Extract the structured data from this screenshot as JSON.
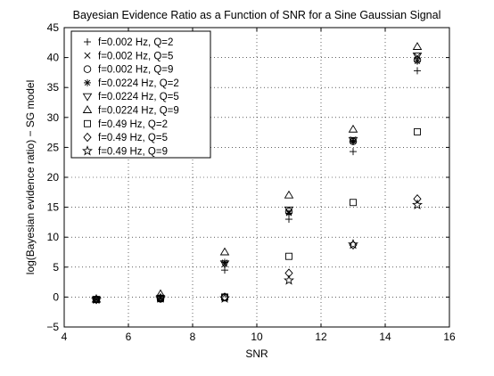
{
  "chart_data": {
    "type": "scatter",
    "title": "Bayesian Evidence Ratio as a Function of SNR for a Sine Gaussian Signal",
    "xlabel": "SNR",
    "ylabel": "log(Bayesian evidence ratio) − SG model",
    "xlim": [
      4,
      16
    ],
    "ylim": [
      -5,
      45
    ],
    "xticks": [
      "4",
      "6",
      "8",
      "10",
      "12",
      "14",
      "16"
    ],
    "yticks": [
      "−5",
      "0",
      "5",
      "10",
      "15",
      "20",
      "25",
      "30",
      "35",
      "40",
      "45"
    ],
    "grid": true,
    "legend_position": "top-left",
    "series": [
      {
        "name": "f=0.002 Hz, Q=2",
        "marker": "plus",
        "x": [
          5,
          7,
          9,
          11,
          13,
          15
        ],
        "y": [
          -0.4,
          -0.2,
          4.5,
          13.0,
          24.3,
          37.8
        ]
      },
      {
        "name": "f=0.002 Hz, Q=5",
        "marker": "x",
        "x": [
          5,
          7,
          9,
          11,
          13,
          15
        ],
        "y": [
          -0.4,
          -0.2,
          5.5,
          14.2,
          26.3,
          40.2
        ]
      },
      {
        "name": "f=0.002 Hz, Q=9",
        "marker": "circle",
        "x": [
          5,
          7,
          9,
          11,
          13,
          15
        ],
        "y": [
          -0.4,
          -0.3,
          0.0,
          14.3,
          26.0,
          39.6
        ]
      },
      {
        "name": "f=0.0224 Hz, Q=2",
        "marker": "asterisk",
        "x": [
          5,
          7,
          9,
          11,
          13,
          15
        ],
        "y": [
          -0.4,
          -0.2,
          5.8,
          14.0,
          26.0,
          39.4
        ]
      },
      {
        "name": "f=0.0224 Hz, Q=5",
        "marker": "triangle-down",
        "x": [
          5,
          7,
          9,
          11,
          13,
          15
        ],
        "y": [
          -0.4,
          -0.2,
          5.6,
          14.6,
          26.2,
          40.3
        ]
      },
      {
        "name": "f=0.0224 Hz, Q=9",
        "marker": "triangle-up",
        "x": [
          5,
          7,
          9,
          11,
          13,
          15
        ],
        "y": [
          -0.4,
          0.5,
          7.5,
          17.0,
          28.0,
          41.8
        ]
      },
      {
        "name": "f=0.49 Hz, Q=2",
        "marker": "square",
        "x": [
          5,
          7,
          9,
          11,
          13,
          15
        ],
        "y": [
          -0.4,
          -0.2,
          0.0,
          6.8,
          15.8,
          27.6
        ]
      },
      {
        "name": "f=0.49 Hz, Q=5",
        "marker": "diamond",
        "x": [
          5,
          7,
          9,
          11,
          13,
          15
        ],
        "y": [
          -0.4,
          -0.2,
          0.0,
          4.0,
          8.7,
          16.4
        ]
      },
      {
        "name": "f=0.49 Hz, Q=9",
        "marker": "star",
        "x": [
          5,
          7,
          9,
          11,
          13,
          15
        ],
        "y": [
          -0.4,
          -0.2,
          -0.2,
          2.8,
          8.8,
          15.4
        ]
      }
    ]
  }
}
